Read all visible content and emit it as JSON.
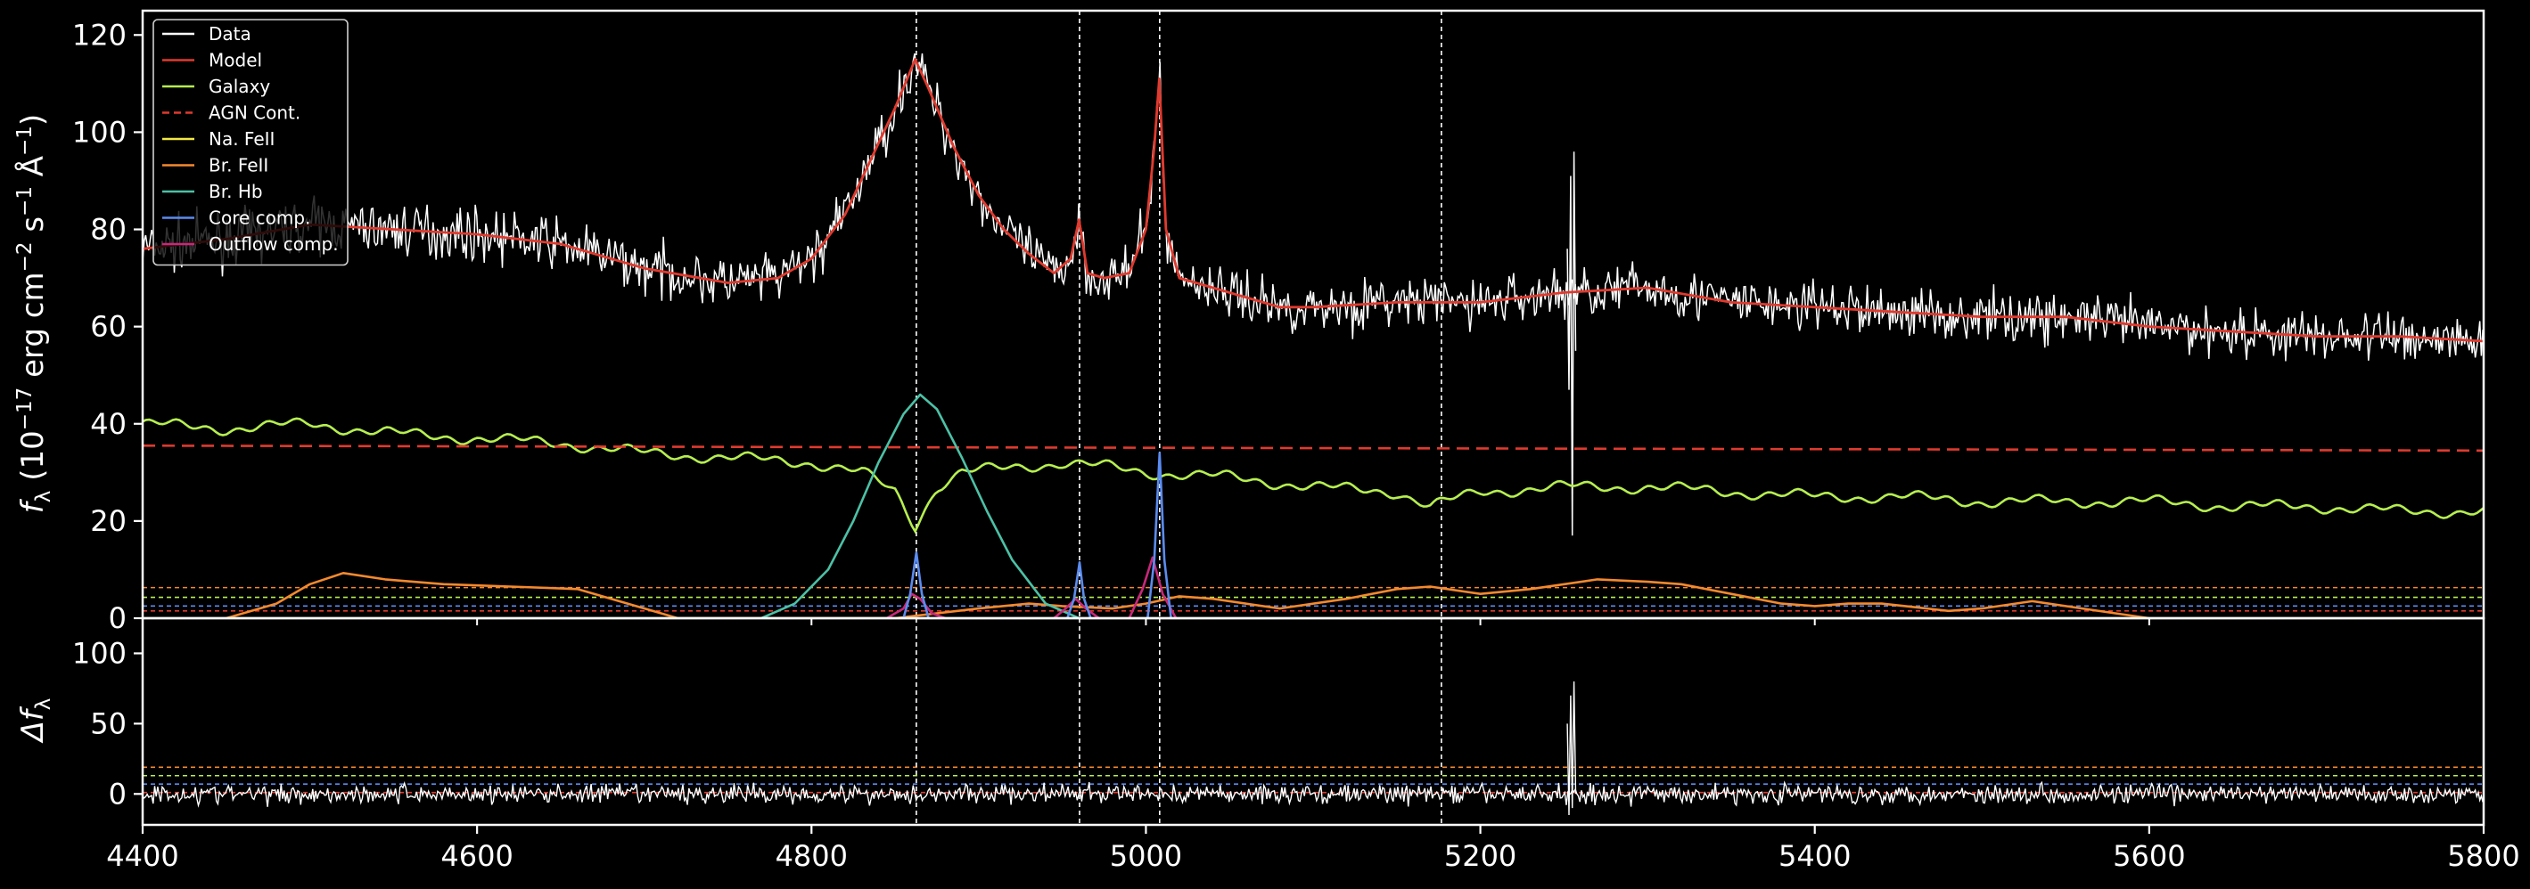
{
  "figure": {
    "background": "#000000",
    "foreground": "#ffffff"
  },
  "chart_data": [
    {
      "panel": "spectrum",
      "type": "line",
      "ylabel": "f_λ (10^−17 erg cm^−2 s^−1 Å^−1)",
      "ylabel_parts": {
        "main": "f",
        "sub": "λ",
        "open": " (10",
        "exp1": "−17",
        "mid1": " erg cm",
        "exp2": "−2",
        "mid2": " s",
        "exp3": "−1",
        "mid3": " Å",
        "exp4": "−1",
        "close": ")"
      },
      "xlim": [
        4400,
        5800
      ],
      "ylim": [
        0,
        125
      ],
      "yticks": [
        0,
        20,
        40,
        60,
        80,
        100,
        120
      ],
      "legend": {
        "placement": "upper-left",
        "entries": [
          {
            "label": "Data",
            "color": "#ffffff",
            "style": "solid"
          },
          {
            "label": "Model",
            "color": "#e03a2e",
            "style": "solid"
          },
          {
            "label": "Galaxy",
            "color": "#b6ef4f",
            "style": "solid"
          },
          {
            "label": "AGN Cont.",
            "color": "#e03a2e",
            "style": "dashed"
          },
          {
            "label": "Na. FeII",
            "color": "#f2e843",
            "style": "solid"
          },
          {
            "label": "Br. FeII",
            "color": "#f5892e",
            "style": "solid"
          },
          {
            "label": "Br. Hb",
            "color": "#4cc1a6",
            "style": "solid"
          },
          {
            "label": "Core comp.",
            "color": "#5b8cf0",
            "style": "solid"
          },
          {
            "label": "Outflow comp.",
            "color": "#c8287a",
            "style": "solid"
          }
        ]
      },
      "vertical_lines": [
        4862.7,
        4960.3,
        5008.2,
        5176.7
      ],
      "horizontal_lines": [
        {
          "y": 6.3,
          "color": "#f5892e"
        },
        {
          "y": 4.3,
          "color": "#b6ef4f"
        },
        {
          "y": 2.5,
          "color": "#5b8cf0"
        },
        {
          "y": 1.5,
          "color": "#e03a2e"
        }
      ],
      "series": [
        {
          "name": "Model",
          "color": "#e03a2e",
          "x": [
            4400,
            4450,
            4500,
            4550,
            4600,
            4650,
            4700,
            4750,
            4780,
            4800,
            4820,
            4835,
            4850,
            4862,
            4870,
            4885,
            4900,
            4915,
            4930,
            4945,
            4955,
            4960,
            4965,
            4975,
            4990,
            5000,
            5005,
            5008,
            5012,
            5020,
            5040,
            5060,
            5080,
            5100,
            5150,
            5200,
            5250,
            5300,
            5350,
            5400,
            5450,
            5500,
            5550,
            5600,
            5650,
            5700,
            5750,
            5800
          ],
          "y": [
            76,
            78,
            81,
            80,
            79,
            77,
            72,
            69,
            70,
            74,
            83,
            94,
            105,
            115,
            109,
            97,
            87,
            80,
            75,
            71,
            74,
            82,
            71,
            70,
            71,
            80,
            97,
            111,
            80,
            70,
            68,
            66,
            64,
            64,
            65,
            65,
            67,
            68,
            65,
            64,
            63,
            62,
            62,
            60,
            59,
            58,
            58,
            57
          ]
        },
        {
          "name": "Galaxy",
          "color": "#b6ef4f",
          "x": [
            4400,
            4450,
            4500,
            4550,
            4600,
            4650,
            4700,
            4750,
            4800,
            4830,
            4850,
            4862,
            4875,
            4890,
            4920,
            4950,
            4980,
            5000,
            5050,
            5100,
            5150,
            5170,
            5200,
            5250,
            5300,
            5350,
            5400,
            5450,
            5500,
            5550,
            5600,
            5650,
            5700,
            5750,
            5800
          ],
          "y": [
            40,
            39,
            40,
            38,
            37,
            36,
            34,
            33,
            32,
            30,
            26,
            19,
            27,
            30,
            31,
            32,
            31,
            30,
            29,
            27,
            26,
            23,
            26,
            27,
            27,
            26,
            25,
            25,
            24,
            24,
            24,
            23,
            23,
            22,
            22
          ]
        },
        {
          "name": "AGN Cont.",
          "color": "#e03a2e",
          "style": "dashed",
          "x": [
            4400,
            5800
          ],
          "y": [
            35.5,
            34.5
          ]
        },
        {
          "name": "Br. FeII",
          "color": "#f5892e",
          "x": [
            4450,
            4480,
            4500,
            4520,
            4545,
            4580,
            4620,
            4660,
            4690,
            4710,
            4720,
            4850,
            4900,
            4930,
            4950,
            4980,
            5000,
            5020,
            5040,
            5080,
            5120,
            5150,
            5170,
            5200,
            5230,
            5270,
            5300,
            5320,
            5350,
            5380,
            5400,
            5420,
            5440,
            5480,
            5500,
            5530,
            5560,
            5600
          ],
          "y": [
            0,
            3,
            7,
            9.3,
            8,
            7,
            6.5,
            6,
            3,
            1,
            0,
            0,
            2,
            3,
            2.5,
            2,
            3,
            4.5,
            4,
            2,
            4,
            6,
            6.5,
            5,
            6,
            8,
            7.5,
            7,
            5,
            3,
            2.5,
            3,
            3,
            1.5,
            2,
            3.5,
            2,
            0
          ]
        },
        {
          "name": "Br. Hb",
          "color": "#4cc1a6",
          "x": [
            4770,
            4790,
            4810,
            4825,
            4840,
            4855,
            4865,
            4875,
            4890,
            4905,
            4920,
            4940,
            4960
          ],
          "y": [
            0,
            3,
            10,
            20,
            32,
            42,
            46,
            43,
            33,
            22,
            12,
            3,
            0
          ]
        },
        {
          "name": "Core comp.",
          "color": "#5b8cf0",
          "x": [
            4855,
            4859,
            4862.7,
            4866,
            4870,
            4953,
            4957,
            4960.3,
            4963,
            4967,
            5001,
            5005,
            5008.2,
            5011,
            5015
          ],
          "y": [
            0,
            5,
            13.5,
            5,
            0,
            0,
            4,
            11.5,
            4,
            0,
            0,
            12,
            34,
            12,
            0
          ],
          "segments": [
            [
              0,
              5
            ],
            [
              5,
              10
            ],
            [
              10,
              15
            ]
          ]
        },
        {
          "name": "Outflow comp.",
          "color": "#c8287a",
          "x": [
            4845,
            4855,
            4860,
            4865,
            4872,
            4880,
            4945,
            4952,
            4958,
            4964,
            4972,
            4990,
            4998,
            5004,
            5010,
            5018
          ],
          "y": [
            0,
            2,
            5,
            4,
            1,
            0,
            0,
            2,
            4,
            2,
            0,
            0,
            6,
            12.5,
            5,
            0
          ],
          "segments": [
            [
              0,
              6
            ],
            [
              6,
              11
            ],
            [
              11,
              16
            ]
          ]
        },
        {
          "name": "Data",
          "color": "#ffffff",
          "noisy": true,
          "spike": {
            "x": 5255,
            "ymin": 17,
            "ymax": 96
          }
        }
      ]
    },
    {
      "panel": "residual",
      "type": "line",
      "xlabel": "",
      "ylabel": "Δf_λ",
      "ylabel_parts": {
        "main": "Δf",
        "sub": "λ"
      },
      "xlim": [
        4400,
        5800
      ],
      "ylim": [
        -22,
        125
      ],
      "xticks": [
        4400,
        4600,
        4800,
        5000,
        5200,
        5400,
        5600,
        5800
      ],
      "yticks": [
        0,
        50,
        100
      ],
      "horizontal_lines": [
        {
          "y": 19,
          "color": "#f5892e"
        },
        {
          "y": 13,
          "color": "#b6ef4f"
        },
        {
          "y": 7,
          "color": "#5b8cf0"
        },
        {
          "y": 1,
          "color": "#e03a2e"
        }
      ],
      "vertical_lines": [
        4862.7,
        4960.3,
        5008.2,
        5176.7
      ],
      "series": [
        {
          "name": "Residual",
          "color": "#ffffff",
          "noisy": true,
          "spike": {
            "x": 5255,
            "ymin": -15,
            "ymax": 80
          }
        }
      ]
    }
  ]
}
